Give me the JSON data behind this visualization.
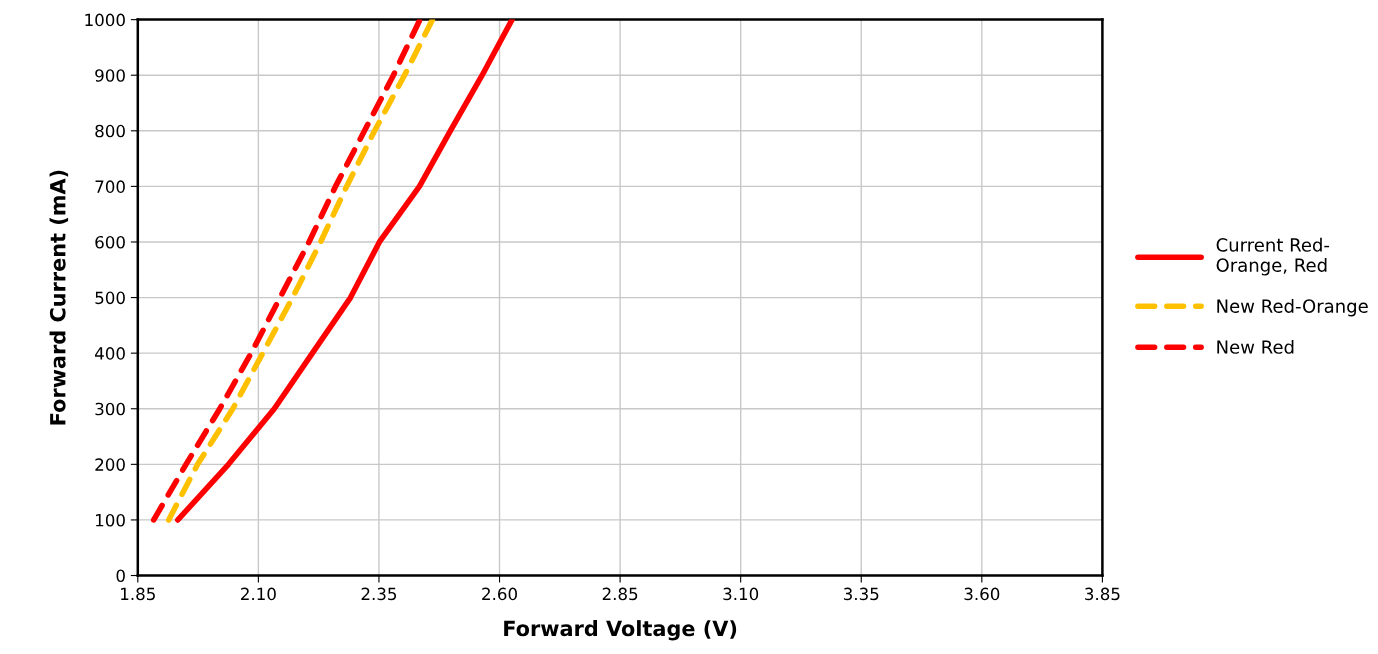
{
  "chart_data": {
    "type": "line",
    "xlabel": "Forward Voltage (V)",
    "ylabel": "Forward Current (mA)",
    "xlim": [
      1.85,
      3.85
    ],
    "xticks": [
      {
        "value": 1.85,
        "label": "1.85"
      },
      {
        "value": 2.1,
        "label": "2.10"
      },
      {
        "value": 2.35,
        "label": "2.35"
      },
      {
        "value": 2.6,
        "label": "2.60"
      },
      {
        "value": 2.85,
        "label": "2.85"
      },
      {
        "value": 3.1,
        "label": "3.10"
      },
      {
        "value": 3.35,
        "label": "3.35"
      },
      {
        "value": 3.6,
        "label": "3.60"
      },
      {
        "value": 3.85,
        "label": "3.85"
      }
    ],
    "ylim": [
      0,
      1000
    ],
    "yticks": [
      0,
      100,
      200,
      300,
      400,
      500,
      600,
      700,
      800,
      900,
      1000
    ],
    "grid": true,
    "legend": "right",
    "marker": "none",
    "series": [
      {
        "name": "Current Red-\nOrange, Red",
        "color": "#ff0000",
        "line_style": "solid",
        "x": [
          1.933,
          2.038,
          2.133,
          2.212,
          2.291,
          2.351,
          2.434,
          2.498,
          2.564,
          2.626
        ],
        "values": [
          100,
          200,
          300,
          400,
          500,
          600,
          700,
          800,
          900,
          1000
        ]
      },
      {
        "name": "New Red-Orange",
        "color": "#ffc000",
        "line_style": "dashed",
        "x": [
          1.914,
          1.974,
          2.047,
          2.109,
          2.171,
          2.229,
          2.283,
          2.341,
          2.403,
          2.461
        ],
        "values": [
          100,
          200,
          300,
          400,
          500,
          600,
          700,
          800,
          900,
          1000
        ]
      },
      {
        "name": "New Red",
        "color": "#ff0000",
        "line_style": "dashed",
        "x": [
          1.883,
          1.95,
          2.02,
          2.085,
          2.145,
          2.205,
          2.26,
          2.32,
          2.38,
          2.435
        ],
        "values": [
          100,
          200,
          300,
          400,
          500,
          600,
          700,
          800,
          900,
          1000
        ]
      }
    ]
  }
}
